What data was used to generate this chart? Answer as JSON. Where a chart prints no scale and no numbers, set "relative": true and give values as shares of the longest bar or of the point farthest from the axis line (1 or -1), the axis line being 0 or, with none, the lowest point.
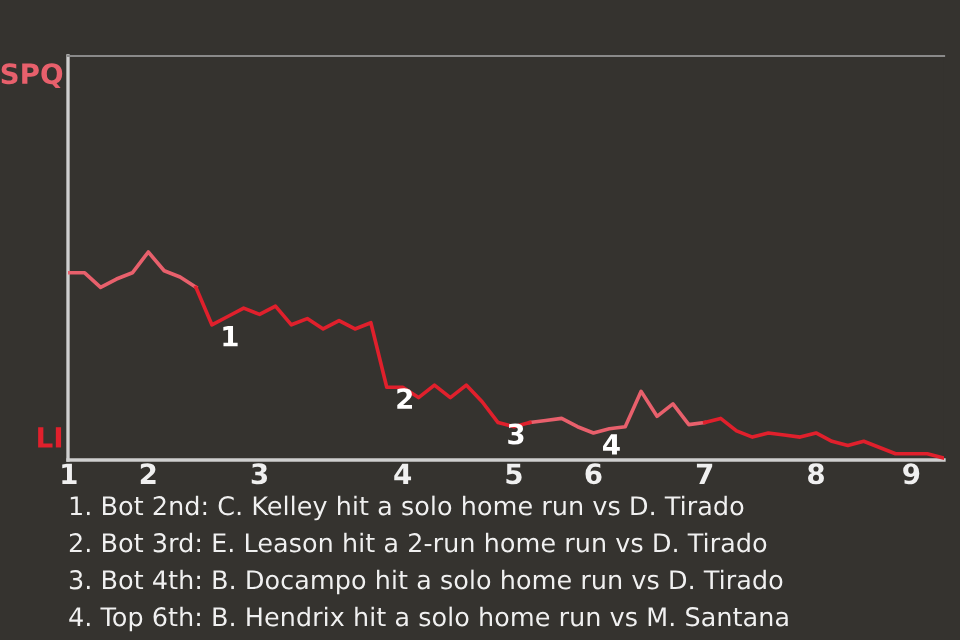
{
  "chart_data": {
    "type": "line",
    "relative": true,
    "categories": [
      "1",
      null,
      null,
      null,
      null,
      "2",
      null,
      null,
      null,
      null,
      null,
      null,
      "3",
      null,
      null,
      null,
      null,
      null,
      null,
      null,
      null,
      "4",
      null,
      null,
      null,
      null,
      null,
      null,
      "5",
      null,
      null,
      null,
      null,
      "6",
      null,
      null,
      null,
      null,
      null,
      null,
      "7",
      null,
      null,
      null,
      null,
      null,
      null,
      "8",
      null,
      null,
      null,
      null,
      null,
      "9",
      null,
      null
    ],
    "series": [
      {
        "name": "SPQ",
        "color": "#e8606c",
        "values": [
          0.9,
          0.9,
          0.83,
          0.87,
          0.9,
          1.0,
          0.91,
          0.88,
          0.83,
          null,
          null,
          null,
          null,
          null,
          null,
          null,
          null,
          null,
          null,
          null,
          null,
          null,
          null,
          null,
          null,
          null,
          null,
          null,
          null,
          0.18,
          0.19,
          0.2,
          0.16,
          0.13,
          0.15,
          0.16,
          0.33,
          0.21,
          0.27,
          0.17,
          0.18,
          null,
          null,
          null,
          null,
          null,
          null,
          null,
          null,
          null,
          null,
          null,
          null,
          null,
          null,
          null
        ]
      },
      {
        "name": "LI",
        "color": "#e0202c",
        "values": [
          null,
          null,
          null,
          null,
          null,
          null,
          null,
          null,
          0.83,
          0.65,
          0.69,
          0.73,
          0.7,
          0.74,
          0.65,
          0.68,
          0.63,
          0.67,
          0.63,
          0.66,
          0.35,
          0.35,
          0.3,
          0.36,
          0.3,
          0.36,
          0.28,
          0.18,
          0.16,
          0.18,
          null,
          null,
          null,
          null,
          null,
          null,
          null,
          null,
          null,
          null,
          0.18,
          0.2,
          0.14,
          0.11,
          0.13,
          0.12,
          0.11,
          0.13,
          0.09,
          0.07,
          0.09,
          0.06,
          0.03,
          0.03,
          0.03,
          0.01
        ]
      }
    ],
    "legend": false,
    "marker": "none",
    "line_style": "solid",
    "annotations": [
      {
        "text": "1",
        "y": 0.65
      },
      {
        "text": "2",
        "y": 0.35
      },
      {
        "text": "3",
        "y": 0.18
      },
      {
        "text": "4",
        "x": "6",
        "y": 0.13
      },
      "1. Bot 2nd: C. Kelley hit a solo home run vs D. Tirado",
      "2. Bot 3rd: E. Leason hit a 2-run home run vs D. Tirado",
      "3. Bot 4th: B. Docampo hit a solo home run vs D. Tirado",
      "4. Top 6th: B. Hendrix hit a solo home run vs M. Santana"
    ]
  }
}
